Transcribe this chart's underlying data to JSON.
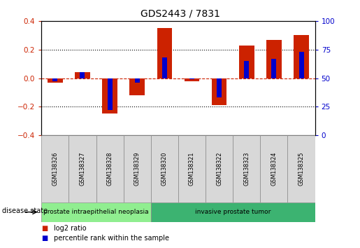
{
  "title": "GDS2443 / 7831",
  "samples": [
    "GSM138326",
    "GSM138327",
    "GSM138328",
    "GSM138329",
    "GSM138320",
    "GSM138321",
    "GSM138322",
    "GSM138323",
    "GSM138324",
    "GSM138325"
  ],
  "log2_ratio": [
    -0.03,
    0.04,
    -0.25,
    -0.12,
    0.35,
    -0.02,
    -0.19,
    0.23,
    0.27,
    0.3
  ],
  "percentile_rank": [
    47,
    55,
    22,
    46,
    68,
    49,
    33,
    65,
    67,
    73
  ],
  "disease_groups": [
    {
      "label": "prostate intraepithelial neoplasia",
      "start": 0,
      "end": 4,
      "color": "#90EE90"
    },
    {
      "label": "invasive prostate tumor",
      "start": 4,
      "end": 10,
      "color": "#3CB371"
    }
  ],
  "ylim_left": [
    -0.4,
    0.4
  ],
  "ylim_right": [
    0,
    100
  ],
  "yticks_left": [
    -0.4,
    -0.2,
    0.0,
    0.2,
    0.4
  ],
  "yticks_right": [
    0,
    25,
    50,
    75,
    100
  ],
  "bar_color_red": "#CC2200",
  "bar_color_blue": "#0000CC",
  "zero_line_color": "#CC2200",
  "label_log2": "log2 ratio",
  "label_percentile": "percentile rank within the sample",
  "disease_state_label": "disease state",
  "fig_width": 5.15,
  "fig_height": 3.54,
  "dpi": 100
}
